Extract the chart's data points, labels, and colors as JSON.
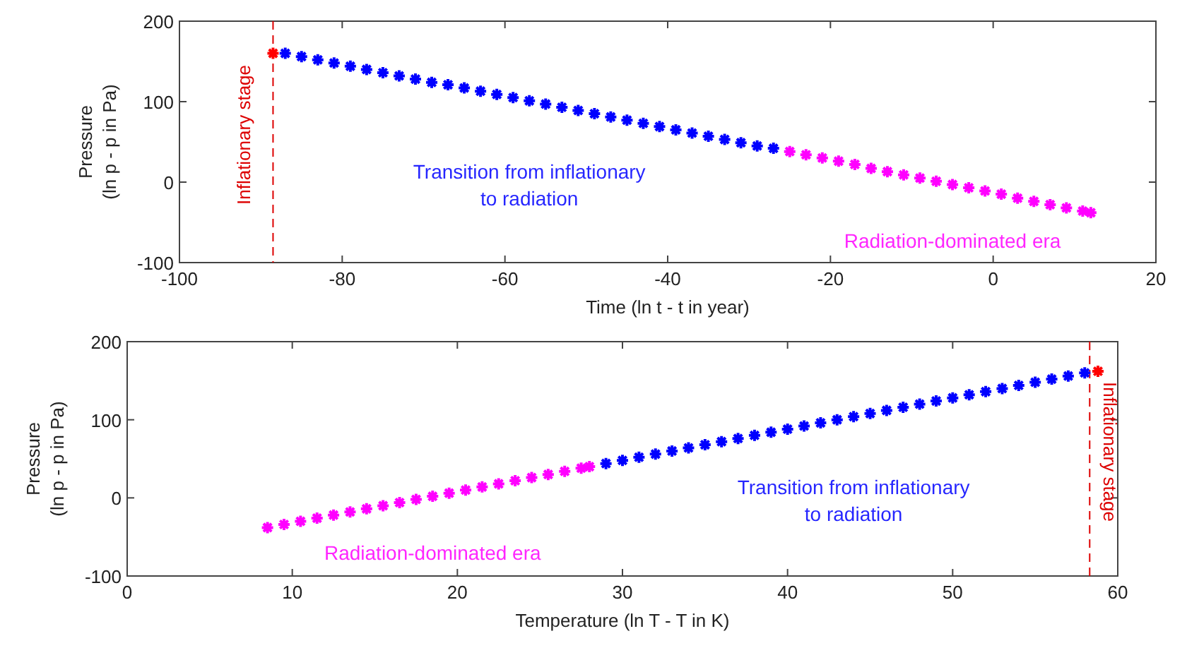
{
  "chart_data": [
    {
      "type": "scatter",
      "xlabel": "Time (ln t - t in year)",
      "ylabel": "Pressure\n(ln p - p in Pa)",
      "xlim": [
        -100,
        20
      ],
      "xticks": [
        -100,
        -80,
        -60,
        -40,
        -20,
        0,
        20
      ],
      "ylim": [
        -100,
        200
      ],
      "yticks": [
        -100,
        0,
        100,
        200
      ],
      "marker": "cross",
      "grid": false,
      "ref_lines": [
        {
          "axis": "x",
          "value": -88.5,
          "label": "Inflationary stage",
          "color": "#dd0000",
          "line_style": "dashed"
        }
      ],
      "series": [
        {
          "color": "#ff0000",
          "x": [
            -88.5
          ],
          "values": [
            160
          ]
        },
        {
          "name": "Transition from inflationary to radiation",
          "color": "#0000ff",
          "x": [
            -87,
            -85,
            -83,
            -81,
            -79,
            -77,
            -75,
            -73,
            -71,
            -69,
            -67,
            -65,
            -63,
            -61,
            -59,
            -57,
            -55,
            -53,
            -51,
            -49,
            -47,
            -45,
            -43,
            -41,
            -39,
            -37,
            -35,
            -33,
            -31,
            -29,
            -27
          ],
          "values": [
            160,
            156,
            152,
            148,
            144,
            140,
            136,
            132,
            128,
            124,
            121,
            117,
            113,
            109,
            105,
            101,
            97,
            93,
            89,
            85,
            81,
            77,
            73,
            69,
            65,
            61,
            57,
            53,
            49,
            45,
            42
          ]
        },
        {
          "name": "Radiation-dominated era",
          "color": "#ff00ff",
          "x": [
            -25,
            -23,
            -21,
            -19,
            -17,
            -15,
            -13,
            -11,
            -9,
            -7,
            -5,
            -3,
            -1,
            1,
            3,
            5,
            7,
            9,
            11,
            12
          ],
          "values": [
            38,
            34,
            30,
            26,
            22,
            17,
            13,
            9,
            5,
            1,
            -3,
            -7,
            -11,
            -15,
            -20,
            -24,
            -28,
            -32,
            -36,
            -38
          ]
        }
      ]
    },
    {
      "type": "scatter",
      "xlabel": "Temperature (ln T - T in K)",
      "ylabel": "Pressure\n(ln p - p in Pa)",
      "xlim": [
        0,
        60
      ],
      "xticks": [
        0,
        10,
        20,
        30,
        40,
        50,
        60
      ],
      "ylim": [
        -100,
        200
      ],
      "yticks": [
        -100,
        0,
        100,
        200
      ],
      "marker": "cross",
      "grid": false,
      "ref_lines": [
        {
          "axis": "x",
          "value": 58.3,
          "label": "Inflationary stage",
          "color": "#dd0000",
          "line_style": "dashed"
        }
      ],
      "series": [
        {
          "color": "#ff0000",
          "x": [
            58.8
          ],
          "values": [
            162
          ]
        },
        {
          "name": "Transition from inflationary to radiation",
          "color": "#0000ff",
          "x": [
            29,
            30,
            31,
            32,
            33,
            34,
            35,
            36,
            37,
            38,
            39,
            40,
            41,
            42,
            43,
            44,
            45,
            46,
            47,
            48,
            49,
            50,
            51,
            52,
            53,
            54,
            55,
            56,
            57,
            58
          ],
          "values": [
            44,
            48,
            52,
            56,
            60,
            64,
            68,
            72,
            76,
            80,
            84,
            88,
            92,
            96,
            100,
            104,
            108,
            112,
            116,
            120,
            124,
            128,
            132,
            136,
            140,
            144,
            148,
            152,
            156,
            160
          ]
        },
        {
          "name": "Radiation-dominated era",
          "color": "#ff00ff",
          "x": [
            8.5,
            9.5,
            10.5,
            11.5,
            12.5,
            13.5,
            14.5,
            15.5,
            16.5,
            17.5,
            18.5,
            19.5,
            20.5,
            21.5,
            22.5,
            23.5,
            24.5,
            25.5,
            26.5,
            27.5,
            28
          ],
          "values": [
            -38,
            -34,
            -30,
            -26,
            -22,
            -18,
            -14,
            -10,
            -6,
            -2,
            2,
            6,
            10,
            14,
            18,
            22,
            26,
            30,
            34,
            38,
            40
          ]
        }
      ]
    }
  ]
}
